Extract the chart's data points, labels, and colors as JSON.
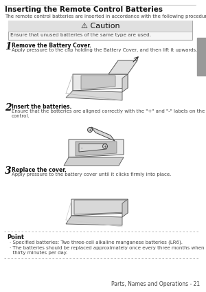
{
  "title": "Inserting the Remote Control Batteries",
  "subtitle": "The remote control batteries are inserted in accordance with the following procedure:",
  "caution_title": "⚠ Caution",
  "caution_text": "Ensure that unused batteries of the same type are used.",
  "step1_num": "1",
  "step1_bold": "Remove the Battery Cover.",
  "step1_text": "Apply pressure to the clip holding the Battery Cover, and then lift it upwards.",
  "step2_num": "2",
  "step2_bold": "Insert the batteries.",
  "step2_text": "Ensure that the batteries are aligned correctly with the \"+\" and \"-\" labels on the remote\ncontrol.",
  "step3_num": "3",
  "step3_bold": "Replace the cover.",
  "step3_text": "Apply pressure to the battery cover until it clicks firmly into place.",
  "point_title": "Point",
  "point_bullet1": "· Specified batteries: Two three-cell alkaline manganese batteries (LR6).",
  "point_bullet2": "· The batteries should be replaced approximately once every three months when used for\n  thirty minutes per day.",
  "footer": "Parts, Names and Operations - 21",
  "bg_color": "#ffffff",
  "tab_color": "#999999",
  "text_color": "#444444",
  "title_color": "#111111",
  "caution_header_bg": "#e0e0e0",
  "caution_body_bg": "#f5f5f5",
  "caution_border": "#aaaaaa",
  "dash_color": "#aaaaaa"
}
